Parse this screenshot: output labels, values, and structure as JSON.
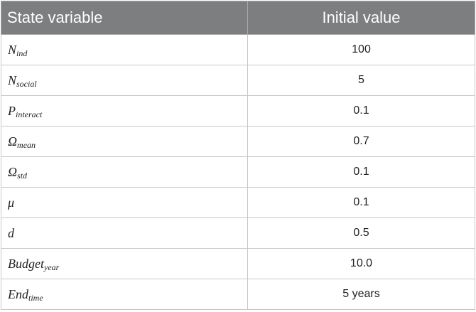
{
  "table": {
    "headers": [
      "State variable",
      "Initial value"
    ],
    "rows": [
      {
        "symbol": "N",
        "sub": "ind",
        "value": "100"
      },
      {
        "symbol": "N",
        "sub": "social",
        "value": "5"
      },
      {
        "symbol": "P",
        "sub": "interact",
        "value": "0.1"
      },
      {
        "symbol": "Ω",
        "sub": "mean",
        "value": "0.7"
      },
      {
        "symbol": "Ω",
        "sub": "std",
        "value": "0.1"
      },
      {
        "symbol": "μ",
        "sub": "",
        "value": "0.1"
      },
      {
        "symbol": "d",
        "sub": "",
        "value": "0.5"
      },
      {
        "symbol": "Budget",
        "sub": "year",
        "value": "10.0"
      },
      {
        "symbol": "End",
        "sub": "time",
        "value": "5 years"
      }
    ]
  },
  "colors": {
    "header_bg": "#7d7e80",
    "header_text": "#ffffff",
    "grid": "#c6c7c9"
  }
}
